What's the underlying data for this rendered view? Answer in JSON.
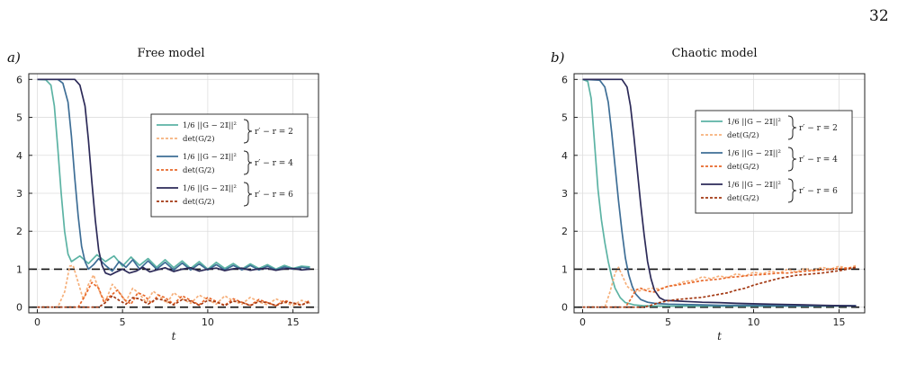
{
  "page_number": "32",
  "colors": {
    "series_teal": "#5cb3a4",
    "series_blue": "#3e6e96",
    "series_navy": "#2c2a58",
    "det_light": "#f6b07b",
    "det_mid": "#e8682a",
    "det_dark": "#a33812",
    "reference": "#111111",
    "grid": "#dddddd"
  },
  "legend_labels": {
    "norm": "1/6 ||G − 2𝕀||²",
    "det": "det(G/2)",
    "group_2": "r′ − r = 2",
    "group_4": "r′ − r = 4",
    "group_6": "r′ − r = 6"
  },
  "chart_data": [
    {
      "panel_label": "a)",
      "title": "Free model",
      "type": "line",
      "xlabel": "t",
      "ylabel": "",
      "xlim": [
        -0.5,
        16.5
      ],
      "ylim": [
        -0.15,
        6.15
      ],
      "xticks": [
        "0",
        "5",
        "10",
        "15"
      ],
      "yticks": [
        "0",
        "1",
        "2",
        "3",
        "4",
        "5",
        "6"
      ],
      "grid": true,
      "legend": "upper-right",
      "reference_lines": [
        1,
        0
      ],
      "series": [
        {
          "name": "1/6 ||G − 2𝕀||², r′ − r = 2",
          "style": "solid",
          "color": "#5cb3a4",
          "x": [
            0,
            0.5,
            0.8,
            1.0,
            1.2,
            1.4,
            1.6,
            1.8,
            2.0,
            2.5,
            3.0,
            3.5,
            4.0,
            4.5,
            5.0,
            5.5,
            6.0,
            6.5,
            7.0,
            7.5,
            8.0,
            8.5,
            9.0,
            9.5,
            10.0,
            10.5,
            11.0,
            11.5,
            12.0,
            12.5,
            13.0,
            13.5,
            14.0,
            14.5,
            15.0,
            15.5,
            16.0
          ],
          "y": [
            6.0,
            5.99,
            5.85,
            5.3,
            4.2,
            3.0,
            2.0,
            1.4,
            1.2,
            1.35,
            1.15,
            1.38,
            1.2,
            1.35,
            1.08,
            1.32,
            1.1,
            1.28,
            1.05,
            1.25,
            1.04,
            1.22,
            1.02,
            1.2,
            1.0,
            1.18,
            1.02,
            1.15,
            1.0,
            1.14,
            1.02,
            1.12,
            1.0,
            1.1,
            1.02,
            1.08,
            1.06
          ]
        },
        {
          "name": "det(G/2), r′ − r = 2",
          "style": "dashed",
          "color": "#f6b07b",
          "x": [
            0,
            1.2,
            1.6,
            1.9,
            2.1,
            2.4,
            2.7,
            3.0,
            3.3,
            3.7,
            4.0,
            4.4,
            4.8,
            5.2,
            5.6,
            6.0,
            6.4,
            6.8,
            7.2,
            7.6,
            8.0,
            8.5,
            9.0,
            9.5,
            10.0,
            10.5,
            11.0,
            11.5,
            12.0,
            12.5,
            13.0,
            13.5,
            14.0,
            14.5,
            15.0,
            15.5,
            16.0
          ],
          "y": [
            0.0,
            0.0,
            0.4,
            1.08,
            1.1,
            0.65,
            0.2,
            0.6,
            0.85,
            0.35,
            0.15,
            0.6,
            0.4,
            0.15,
            0.5,
            0.35,
            0.12,
            0.42,
            0.28,
            0.1,
            0.38,
            0.22,
            0.1,
            0.32,
            0.2,
            0.08,
            0.3,
            0.16,
            0.08,
            0.26,
            0.14,
            0.06,
            0.22,
            0.12,
            0.05,
            0.18,
            0.1
          ]
        },
        {
          "name": "1/6 ||G − 2𝕀||², r′ − r = 4",
          "style": "solid",
          "color": "#3e6e96",
          "x": [
            0,
            1.2,
            1.5,
            1.8,
            2.0,
            2.2,
            2.4,
            2.6,
            2.8,
            3.0,
            3.3,
            3.6,
            4.0,
            4.4,
            4.8,
            5.2,
            5.6,
            6.0,
            6.5,
            7.0,
            7.5,
            8.0,
            8.5,
            9.0,
            9.5,
            10.0,
            10.5,
            11.0,
            11.5,
            12.0,
            12.5,
            13.0,
            13.5,
            14.0,
            14.5,
            15.0,
            15.5,
            16.0
          ],
          "y": [
            6.0,
            6.0,
            5.9,
            5.4,
            4.5,
            3.4,
            2.4,
            1.6,
            1.2,
            1.0,
            1.12,
            1.28,
            1.1,
            0.95,
            1.2,
            1.05,
            1.25,
            1.0,
            1.22,
            1.0,
            1.18,
            0.98,
            1.16,
            0.98,
            1.14,
            0.98,
            1.12,
            0.98,
            1.1,
            0.98,
            1.1,
            0.98,
            1.08,
            0.98,
            1.06,
            1.0,
            1.05,
            1.02
          ]
        },
        {
          "name": "det(G/2), r′ − r = 4",
          "style": "dashed",
          "color": "#e8682a",
          "x": [
            0,
            2.4,
            2.8,
            3.2,
            3.6,
            3.9,
            4.3,
            4.7,
            5.1,
            5.5,
            5.9,
            6.3,
            6.7,
            7.1,
            7.5,
            8.0,
            8.5,
            9.0,
            9.5,
            10.0,
            10.5,
            11.0,
            11.5,
            12.0,
            12.5,
            13.0,
            13.5,
            14.0,
            14.5,
            15.0,
            15.5,
            16.0
          ],
          "y": [
            0.0,
            0.0,
            0.3,
            0.65,
            0.5,
            0.15,
            0.3,
            0.45,
            0.2,
            0.08,
            0.38,
            0.3,
            0.1,
            0.32,
            0.25,
            0.08,
            0.3,
            0.18,
            0.06,
            0.26,
            0.15,
            0.05,
            0.22,
            0.13,
            0.05,
            0.2,
            0.12,
            0.04,
            0.18,
            0.1,
            0.05,
            0.18
          ]
        },
        {
          "name": "1/6 ||G − 2𝕀||², r′ − r = 6",
          "style": "solid",
          "color": "#2c2a58",
          "x": [
            0,
            2.2,
            2.5,
            2.8,
            3.0,
            3.2,
            3.4,
            3.6,
            3.8,
            4.0,
            4.3,
            4.6,
            5.0,
            5.4,
            5.8,
            6.2,
            6.6,
            7.0,
            7.5,
            8.0,
            8.5,
            9.0,
            9.5,
            10.0,
            10.5,
            11.0,
            11.5,
            12.0,
            12.5,
            13.0,
            13.5,
            14.0,
            14.5,
            15.0,
            15.5,
            16.0
          ],
          "y": [
            6.0,
            6.0,
            5.85,
            5.3,
            4.4,
            3.3,
            2.3,
            1.5,
            1.1,
            0.9,
            0.85,
            0.92,
            1.0,
            0.9,
            0.95,
            1.05,
            0.93,
            0.98,
            1.04,
            0.94,
            1.0,
            1.04,
            0.95,
            1.0,
            1.03,
            0.96,
            1.01,
            1.03,
            0.97,
            1.01,
            1.02,
            0.97,
            1.01,
            1.02,
            0.98,
            1.0
          ]
        },
        {
          "name": "det(G/2), r′ − r = 6",
          "style": "dashed",
          "color": "#a33812",
          "x": [
            0,
            3.6,
            4.0,
            4.4,
            4.8,
            5.2,
            5.6,
            6.0,
            6.5,
            7.0,
            7.5,
            8.0,
            8.5,
            9.0,
            9.5,
            10.0,
            10.5,
            11.0,
            11.5,
            12.0,
            12.5,
            13.0,
            13.5,
            14.0,
            14.5,
            15.0,
            15.5,
            16.0
          ],
          "y": [
            0.0,
            0.0,
            0.12,
            0.3,
            0.18,
            0.08,
            0.25,
            0.22,
            0.08,
            0.22,
            0.18,
            0.06,
            0.2,
            0.16,
            0.05,
            0.18,
            0.14,
            0.04,
            0.16,
            0.13,
            0.04,
            0.15,
            0.12,
            0.04,
            0.14,
            0.11,
            0.06,
            0.14
          ]
        }
      ]
    },
    {
      "panel_label": "b)",
      "title": "Chaotic model",
      "type": "line",
      "xlabel": "t",
      "ylabel": "",
      "xlim": [
        -0.5,
        16.5
      ],
      "ylim": [
        -0.15,
        6.15
      ],
      "xticks": [
        "0",
        "5",
        "10",
        "15"
      ],
      "yticks": [
        "0",
        "1",
        "2",
        "3",
        "4",
        "5",
        "6"
      ],
      "grid": true,
      "legend": "upper-right",
      "reference_lines": [
        1,
        0
      ],
      "series": [
        {
          "name": "1/6 ||G − 2𝕀||², r′ − r = 2",
          "style": "solid",
          "color": "#5cb3a4",
          "x": [
            0,
            0.3,
            0.5,
            0.7,
            0.9,
            1.1,
            1.3,
            1.5,
            1.7,
            1.9,
            2.2,
            2.5,
            3.0,
            3.5,
            4.0,
            5.0,
            6.0,
            8.0,
            10.0,
            12.0,
            14.0,
            16.0
          ],
          "y": [
            6.0,
            5.95,
            5.5,
            4.3,
            3.1,
            2.3,
            1.7,
            1.2,
            0.8,
            0.5,
            0.25,
            0.12,
            0.06,
            0.04,
            0.03,
            0.03,
            0.03,
            0.03,
            0.03,
            0.03,
            0.03,
            0.03
          ]
        },
        {
          "name": "det(G/2), r′ − r = 2",
          "style": "dashed",
          "color": "#f6b07b",
          "x": [
            0,
            1.3,
            1.6,
            1.9,
            2.1,
            2.3,
            2.6,
            3.0,
            3.5,
            4.0,
            4.5,
            5.0,
            5.5,
            6.0,
            6.5,
            7.0,
            7.5,
            8.0,
            8.5,
            9.0,
            9.5,
            10.0,
            10.5,
            11.0,
            11.5,
            12.0,
            12.5,
            13.0,
            13.5,
            14.0,
            14.5,
            15.0,
            15.5,
            16.0
          ],
          "y": [
            0.0,
            0.0,
            0.4,
            0.9,
            1.05,
            0.85,
            0.55,
            0.4,
            0.45,
            0.5,
            0.48,
            0.55,
            0.6,
            0.68,
            0.7,
            0.8,
            0.75,
            0.82,
            0.78,
            0.88,
            0.82,
            0.92,
            0.88,
            0.95,
            0.9,
            1.0,
            0.92,
            1.02,
            0.96,
            1.05,
            1.0,
            1.08,
            1.02,
            1.1
          ]
        },
        {
          "name": "1/6 ||G − 2𝕀||², r′ − r = 4",
          "style": "solid",
          "color": "#3e6e96",
          "x": [
            0,
            1.0,
            1.3,
            1.5,
            1.7,
            1.9,
            2.1,
            2.3,
            2.5,
            2.7,
            2.9,
            3.1,
            3.4,
            3.8,
            4.2,
            4.6,
            5.0,
            6.0,
            7.0,
            8.0,
            10.0,
            12.0,
            14.0,
            16.0
          ],
          "y": [
            6.0,
            5.98,
            5.8,
            5.4,
            4.6,
            3.7,
            2.8,
            2.0,
            1.3,
            0.85,
            0.55,
            0.35,
            0.2,
            0.13,
            0.1,
            0.09,
            0.08,
            0.07,
            0.06,
            0.05,
            0.05,
            0.04,
            0.04,
            0.04
          ]
        },
        {
          "name": "det(G/2), r′ − r = 4",
          "style": "dashed",
          "color": "#e8682a",
          "x": [
            0,
            2.5,
            2.8,
            3.1,
            3.4,
            3.8,
            4.2,
            4.6,
            5.0,
            5.5,
            6.0,
            6.5,
            7.0,
            7.5,
            8.0,
            8.5,
            9.0,
            9.5,
            10.0,
            10.5,
            11.0,
            11.5,
            12.0,
            12.5,
            13.0,
            13.5,
            14.0,
            14.5,
            15.0,
            15.5,
            16.0
          ],
          "y": [
            0.0,
            0.0,
            0.2,
            0.45,
            0.5,
            0.42,
            0.4,
            0.48,
            0.55,
            0.58,
            0.62,
            0.66,
            0.7,
            0.72,
            0.74,
            0.78,
            0.8,
            0.82,
            0.85,
            0.86,
            0.88,
            0.9,
            0.9,
            0.92,
            0.95,
            0.96,
            0.98,
            1.0,
            1.02,
            1.03,
            1.05
          ]
        },
        {
          "name": "1/6 ||G − 2𝕀||², r′ − r = 6",
          "style": "solid",
          "color": "#2c2a58",
          "x": [
            0,
            2.3,
            2.6,
            2.8,
            3.0,
            3.2,
            3.4,
            3.6,
            3.8,
            4.0,
            4.2,
            4.5,
            4.8,
            5.2,
            5.6,
            6.0,
            7.0,
            8.0,
            9.0,
            10.0,
            11.0,
            12.0,
            13.0,
            14.0,
            15.0,
            16.0
          ],
          "y": [
            6.0,
            6.0,
            5.8,
            5.3,
            4.5,
            3.6,
            2.7,
            1.9,
            1.2,
            0.75,
            0.45,
            0.25,
            0.18,
            0.17,
            0.16,
            0.15,
            0.13,
            0.12,
            0.1,
            0.09,
            0.08,
            0.07,
            0.06,
            0.05,
            0.04,
            0.03
          ]
        },
        {
          "name": "det(G/2), r′ − r = 6",
          "style": "dashed",
          "color": "#a33812",
          "x": [
            0,
            3.6,
            4.0,
            4.5,
            5.0,
            5.5,
            6.0,
            6.5,
            7.0,
            7.5,
            8.0,
            8.5,
            9.0,
            9.5,
            10.0,
            10.5,
            11.0,
            11.5,
            12.0,
            12.5,
            13.0,
            13.5,
            14.0,
            14.5,
            15.0,
            15.5,
            16.0
          ],
          "y": [
            0.0,
            0.0,
            0.05,
            0.12,
            0.17,
            0.2,
            0.22,
            0.24,
            0.26,
            0.3,
            0.34,
            0.38,
            0.45,
            0.5,
            0.58,
            0.64,
            0.7,
            0.76,
            0.8,
            0.84,
            0.86,
            0.88,
            0.9,
            0.93,
            0.96,
            1.0,
            1.05
          ]
        }
      ]
    }
  ]
}
